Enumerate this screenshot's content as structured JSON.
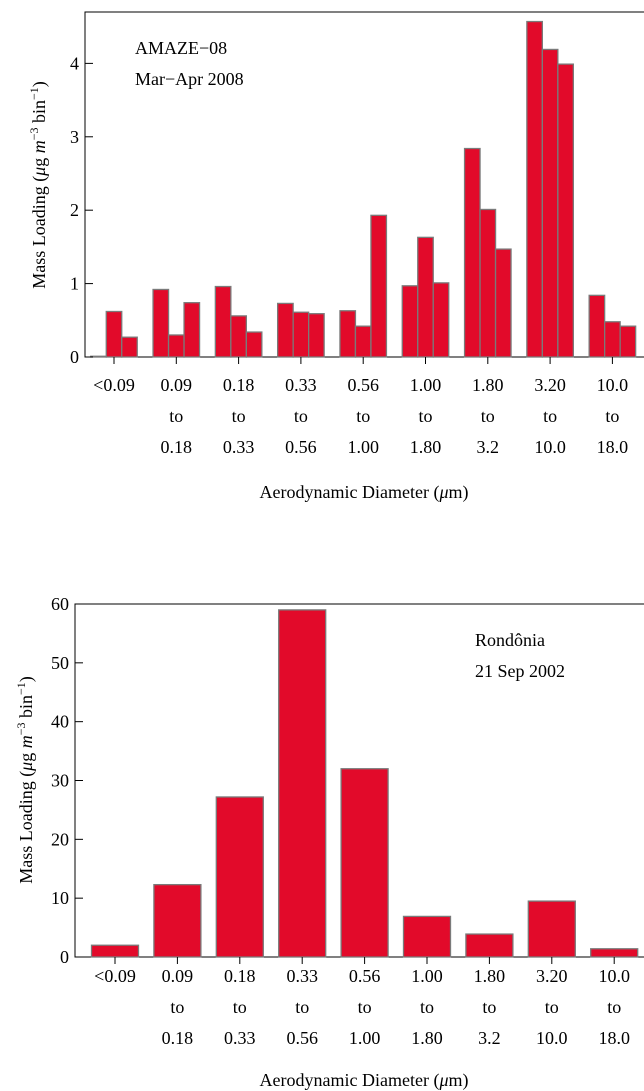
{
  "chart_data": [
    {
      "type": "bar",
      "annotation": [
        "AMAZE−08",
        "Mar−Apr 2008"
      ],
      "ylabel_main": "Mass Loading (",
      "ylabel_mu": "μ",
      "ylabel_g": "g ",
      "ylabel_m": "m",
      "ylabel_sup3": "−3",
      "ylabel_bin": " bin",
      "ylabel_sup1": "−1",
      "ylabel_close": ")",
      "xlabel_main": "Aerodynamic Diameter (",
      "xlabel_mu": "μ",
      "xlabel_rest": "m)",
      "ylim": [
        0,
        4.7
      ],
      "yticks": [
        0,
        1,
        2,
        3,
        4
      ],
      "categories": [
        [
          "<0.09",
          "",
          ""
        ],
        [
          "0.09",
          "to",
          "0.18"
        ],
        [
          "0.18",
          "to",
          "0.33"
        ],
        [
          "0.33",
          "to",
          "0.56"
        ],
        [
          "0.56",
          "to",
          "1.00"
        ],
        [
          "1.00",
          "to",
          "1.80"
        ],
        [
          "1.80",
          "to",
          "3.2"
        ],
        [
          "3.20",
          "to",
          "10.0"
        ],
        [
          "10.0",
          "to",
          "18.0"
        ]
      ],
      "groups": [
        [
          0.01,
          0.62,
          0.27
        ],
        [
          0.92,
          0.3,
          0.74
        ],
        [
          0.96,
          0.56,
          0.34
        ],
        [
          0.73,
          0.61,
          0.59
        ],
        [
          0.63,
          0.42,
          1.93
        ],
        [
          0.97,
          1.63,
          1.01
        ],
        [
          2.84,
          2.01,
          1.47
        ],
        [
          4.57,
          4.19,
          3.99
        ],
        [
          0.84,
          0.48,
          0.42
        ]
      ],
      "bar_color": "#e20a2a",
      "edge_color": "#7a7a7a"
    },
    {
      "type": "bar",
      "annotation": [
        "Rondônia",
        "21 Sep 2002"
      ],
      "ylabel_main": "Mass Loading (",
      "ylabel_mu": "μ",
      "ylabel_g": "g ",
      "ylabel_m": "m",
      "ylabel_sup3": "−3",
      "ylabel_bin": " bin",
      "ylabel_sup1": "−1",
      "ylabel_close": ")",
      "xlabel_main": "Aerodynamic Diameter (",
      "xlabel_mu": "μ",
      "xlabel_rest": "m)",
      "ylim": [
        0,
        60
      ],
      "yticks": [
        0,
        10,
        20,
        30,
        40,
        50,
        60
      ],
      "categories": [
        [
          "<0.09",
          "",
          ""
        ],
        [
          "0.09",
          "to",
          "0.18"
        ],
        [
          "0.18",
          "to",
          "0.33"
        ],
        [
          "0.33",
          "to",
          "0.56"
        ],
        [
          "0.56",
          "to",
          "1.00"
        ],
        [
          "1.00",
          "to",
          "1.80"
        ],
        [
          "1.80",
          "to",
          "3.2"
        ],
        [
          "3.20",
          "to",
          "10.0"
        ],
        [
          "10.0",
          "to",
          "18.0"
        ]
      ],
      "values": [
        2.0,
        12.3,
        27.2,
        59.0,
        32.0,
        6.9,
        3.9,
        9.5,
        1.4
      ],
      "bar_color": "#e20a2a",
      "edge_color": "#7a7a7a"
    }
  ]
}
